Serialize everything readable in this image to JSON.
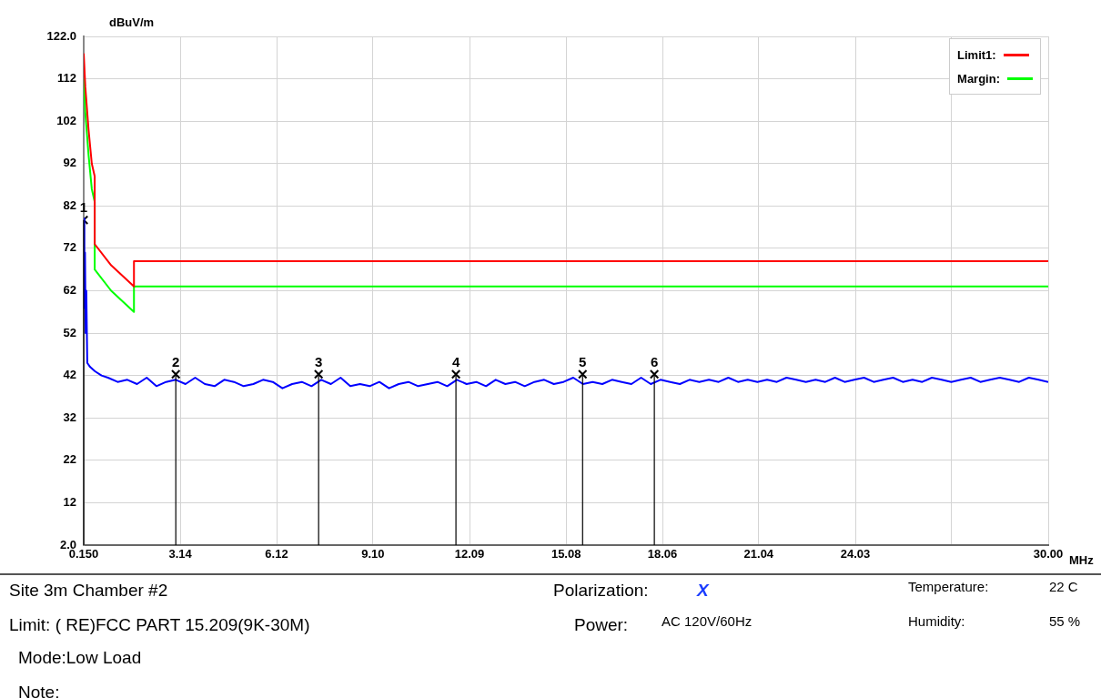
{
  "chart_data": {
    "type": "line",
    "ylabel": "dBuV/m",
    "xlabel": "MHz",
    "xlim": [
      0.15,
      30
    ],
    "xticks": [
      {
        "value": 0.15,
        "label": "0.150"
      },
      3.14,
      6.12,
      {
        "value": 9.1,
        "label": "9.10"
      },
      12.09,
      15.08,
      18.06,
      21.04,
      24.03,
      {
        "value": 27.01,
        "label": null
      },
      {
        "value": 30,
        "label": "30.00"
      }
    ],
    "ylim": [
      2,
      122
    ],
    "yticks": [
      {
        "value": 2,
        "label": "2.0"
      },
      12,
      22,
      32,
      42,
      52,
      62,
      72,
      82,
      92,
      102,
      112,
      {
        "value": 122,
        "label": "122.0"
      }
    ],
    "grid": true,
    "legend": "top right",
    "marker": "none",
    "line_style": "solid",
    "series": [
      {
        "name": "Limit1:",
        "color": "#ff0000",
        "x": [
          0.15,
          0.2,
          0.3,
          0.4,
          0.49,
          0.49,
          1.0,
          1.705,
          1.705,
          30
        ],
        "values": [
          118,
          110,
          100,
          92,
          89,
          73,
          68,
          63,
          69,
          69
        ]
      },
      {
        "name": "Margin:",
        "color": "#00ff00",
        "x": [
          0.15,
          0.2,
          0.3,
          0.4,
          0.49,
          0.49,
          1.0,
          1.705,
          1.705,
          30
        ],
        "values": [
          112,
          104,
          94,
          86,
          83,
          67,
          62,
          57,
          63,
          63
        ]
      },
      {
        "color": "#0000ff",
        "x": [
          0.15,
          0.17,
          0.19,
          0.21,
          0.23,
          0.26,
          0.35,
          0.5,
          0.7,
          0.9,
          1.2,
          1.5,
          1.8,
          2.1,
          2.4,
          2.7,
          3.0,
          3.3,
          3.6,
          3.9,
          4.2,
          4.5,
          4.8,
          5.1,
          5.4,
          5.7,
          6.0,
          6.3,
          6.6,
          6.9,
          7.2,
          7.5,
          7.8,
          8.1,
          8.4,
          8.7,
          9.0,
          9.3,
          9.6,
          9.9,
          10.2,
          10.5,
          10.8,
          11.1,
          11.4,
          11.7,
          12.0,
          12.3,
          12.6,
          12.9,
          13.2,
          13.5,
          13.8,
          14.1,
          14.4,
          14.7,
          15.0,
          15.3,
          15.6,
          15.9,
          16.2,
          16.5,
          16.8,
          17.1,
          17.4,
          17.7,
          18.0,
          18.3,
          18.6,
          18.9,
          19.2,
          19.5,
          19.8,
          20.1,
          20.4,
          20.7,
          21.0,
          21.3,
          21.6,
          21.9,
          22.2,
          22.5,
          22.8,
          23.1,
          23.4,
          23.7,
          24.0,
          24.3,
          24.6,
          24.9,
          25.2,
          25.5,
          25.8,
          26.1,
          26.4,
          26.7,
          27.0,
          27.3,
          27.6,
          27.9,
          28.2,
          28.5,
          28.8,
          29.1,
          29.4,
          29.7,
          30.0
        ],
        "values": [
          79,
          58,
          71,
          52,
          62,
          45,
          44,
          43,
          42,
          41.5,
          40.5,
          41,
          40,
          41.5,
          39.5,
          40.5,
          41,
          40,
          41.5,
          40,
          39.5,
          41,
          40.5,
          39.5,
          40,
          41,
          40.5,
          39,
          40,
          40.5,
          39.5,
          41,
          40,
          41.5,
          39.5,
          40,
          39.5,
          40.5,
          39,
          40,
          40.5,
          39.5,
          40,
          40.5,
          39.5,
          41,
          40,
          40.5,
          39.5,
          41,
          40,
          40.5,
          39.5,
          40.5,
          41,
          40,
          40.5,
          41.5,
          40,
          40.5,
          40,
          41,
          40.5,
          40,
          41.5,
          40,
          41,
          40.5,
          40,
          41,
          40.5,
          41,
          40.5,
          41.5,
          40.5,
          41,
          40.5,
          41,
          40.5,
          41.5,
          41,
          40.5,
          41,
          40.5,
          41.5,
          40.5,
          41,
          41.5,
          40.5,
          41,
          41.5,
          40.5,
          41,
          40.5,
          41.5,
          41,
          40.5,
          41,
          41.5,
          40.5,
          41,
          41.5,
          41,
          40.5,
          41.5,
          41,
          40.5
        ]
      },
      {
        "type": "lollipop",
        "color": "#000000",
        "marker": "cross",
        "x": [
          0.15,
          3.0,
          7.42,
          11.67,
          15.59,
          17.81
        ],
        "values": [
          78.7,
          42.3,
          42.3,
          42.3,
          42.3,
          42.3
        ]
      }
    ],
    "annotations": [
      "Site  3m Chamber #2",
      "Polarization:",
      "X",
      "Temperature:",
      "22 C",
      "Limit: ( RE)FCC PART 15.209(9K-30M)",
      "Power:",
      "AC 120V/60Hz",
      "Humidity:",
      "55 %",
      "Mode:Low Load",
      "Note:",
      {
        "text": "1",
        "x": 0.15,
        "y": 78.7
      },
      {
        "text": "2",
        "x": 3.0,
        "y": 42.3
      },
      {
        "text": "3",
        "x": 7.42,
        "y": 42.3
      },
      {
        "text": "4",
        "x": 11.67,
        "y": 42.3
      },
      {
        "text": "5",
        "x": 15.59,
        "y": 42.3
      },
      {
        "text": "6",
        "x": 17.81,
        "y": 42.3
      }
    ]
  }
}
